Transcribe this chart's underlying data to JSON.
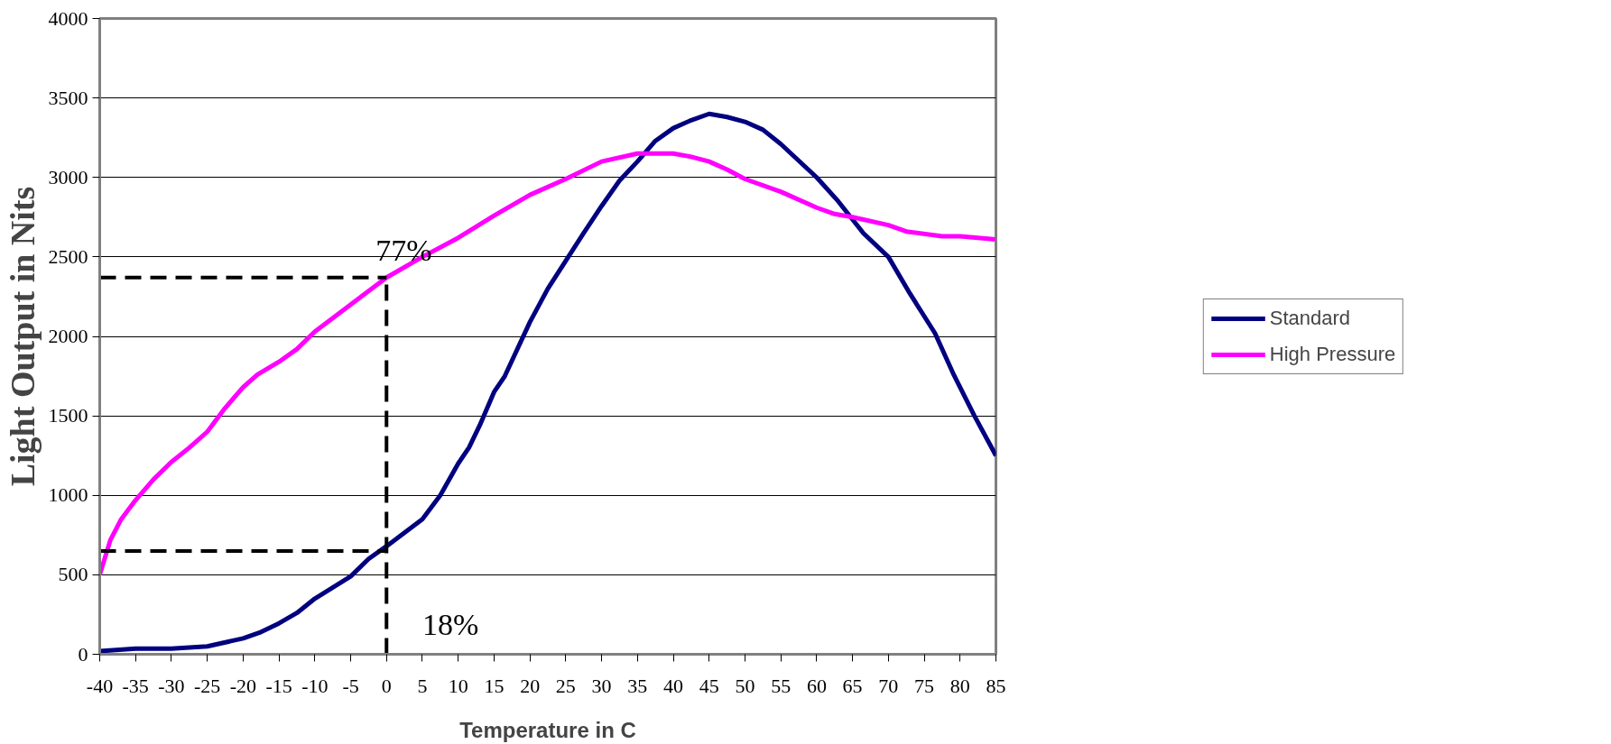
{
  "chart_data": {
    "type": "line",
    "xlabel": "Temperature in C",
    "ylabel": "Light Output in Nits",
    "xlim": [
      -40,
      85
    ],
    "xticks": [
      -40,
      -35,
      -30,
      -25,
      -20,
      -15,
      -10,
      -5,
      0,
      5,
      10,
      15,
      20,
      25,
      30,
      35,
      40,
      45,
      50,
      55,
      60,
      65,
      70,
      75,
      80,
      85
    ],
    "ylim": [
      0,
      4000
    ],
    "yticks": [
      0,
      500,
      1000,
      1500,
      2000,
      2500,
      3000,
      3500,
      4000
    ],
    "grid": "y",
    "legend": "right",
    "marker": "none",
    "line_style": "solid",
    "series": [
      {
        "name": "Standard",
        "color": "#000080",
        "x": [
          -40,
          -35,
          -30,
          -25,
          -20,
          -17.5,
          -15,
          -12.5,
          -10,
          -5,
          -2.5,
          0,
          5,
          7.5,
          10,
          11.5,
          13,
          15,
          16.5,
          20,
          22.5,
          27.5,
          30,
          32.5,
          35,
          37.5,
          40,
          42.5,
          45,
          47.5,
          50,
          52.5,
          55,
          60,
          63,
          66.5,
          70,
          73,
          76.5,
          79,
          82,
          85
        ],
        "values": [
          20,
          35,
          35,
          50,
          100,
          140,
          195,
          260,
          350,
          490,
          600,
          680,
          850,
          1000,
          1200,
          1300,
          1440,
          1650,
          1750,
          2090,
          2300,
          2650,
          2820,
          2980,
          3100,
          3230,
          3310,
          3360,
          3400,
          3380,
          3350,
          3300,
          3210,
          3000,
          2850,
          2650,
          2500,
          2270,
          2020,
          1770,
          1500,
          1250
        ]
      },
      {
        "name": "High Pressure",
        "color": "#ff00ff",
        "x": [
          -40,
          -38.5,
          -37,
          -35,
          -32.5,
          -30,
          -27.5,
          -25,
          -22.5,
          -20,
          -18,
          -15,
          -12.5,
          -10,
          -5,
          0,
          5,
          10,
          15,
          20,
          25,
          30,
          35,
          37.5,
          40,
          42.5,
          45,
          47.5,
          50,
          55,
          60,
          62.5,
          65,
          70,
          72.5,
          77.5,
          80,
          85
        ],
        "values": [
          500,
          720,
          850,
          970,
          1100,
          1210,
          1300,
          1400,
          1550,
          1680,
          1760,
          1840,
          1920,
          2030,
          2200,
          2370,
          2500,
          2620,
          2760,
          2890,
          2990,
          3100,
          3150,
          3150,
          3150,
          3130,
          3100,
          3050,
          2990,
          2910,
          2810,
          2770,
          2750,
          2700,
          2660,
          2630,
          2630,
          2610
        ]
      }
    ],
    "ref_lines": [
      {
        "axis": "y",
        "value": 2370,
        "color": "#000000",
        "line_style": "dashed"
      },
      {
        "axis": "y",
        "value": 650,
        "color": "#000000",
        "line_style": "dashed"
      },
      {
        "axis": "x",
        "value": 0,
        "color": "#000000",
        "line_style": "dashed"
      }
    ],
    "annotations": [
      {
        "text": "77%",
        "x": 0,
        "y": 2370
      },
      "18%"
    ]
  }
}
